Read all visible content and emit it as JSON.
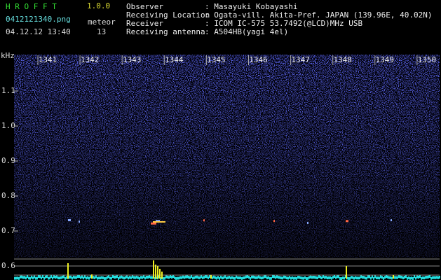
{
  "header": {
    "title": "H R O F F T",
    "version": "1.0.0",
    "filename": "0412121340.png",
    "meteor_label": "meteor",
    "datetime": "04.12.12 13:40",
    "meteor_count": "13"
  },
  "info": [
    {
      "label": "Observer",
      "value": ": Masayuki Kobayashi"
    },
    {
      "label": "Receiving Location",
      "value": ": Ogata-vill. Akita-Pref. JAPAN (139.96E, 40.02N)"
    },
    {
      "label": "Receiver",
      "value": ": ICOM IC-575 53.7492(@LCD)MHz USB"
    },
    {
      "label": "Receiving antenna",
      "value": ": A504HB(yagi 4el)"
    }
  ],
  "plot": {
    "freq_unit": "kHz",
    "time_ticks": [
      "1341",
      "1342",
      "1343",
      "1344",
      "1345",
      "1346",
      "1347",
      "1348",
      "1349",
      "1350"
    ],
    "freq_ticks": [
      "1.1",
      "1.0",
      "0.9",
      "0.8",
      "0.7"
    ],
    "strip_tick": "0.6"
  }
}
